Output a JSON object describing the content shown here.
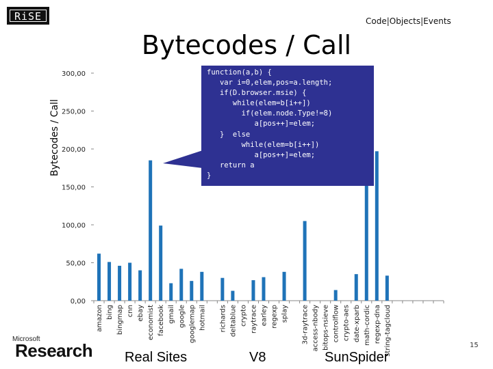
{
  "header": {
    "logo_text": "RiSE",
    "nav": [
      "Code",
      "Objects",
      "Events"
    ],
    "nav_separator": "|"
  },
  "slide_title": "Bytecodes / Call",
  "chart_data": {
    "type": "bar",
    "ylabel": "Bytecodes / Call",
    "ylim": [
      0,
      300
    ],
    "yticks": [
      0,
      50,
      100,
      150,
      200,
      250,
      300
    ],
    "ytick_labels": [
      "0,00",
      "50,00",
      "100,00",
      "150,00",
      "200,00",
      "250,00",
      "300,00"
    ],
    "bar_color": "#1f73b8",
    "categories": [
      "amazon",
      "bing",
      "bingmap",
      "cnn",
      "ebay",
      "economist",
      "facebook",
      "gmail",
      "google",
      "googlemap",
      "hotmail",
      "",
      "richards",
      "deltablue",
      "crypto",
      "raytrace",
      "earley",
      "regexp",
      "splay",
      "",
      "3d-raytrace",
      "access-nbody",
      "bitops-nsieve",
      "controlflow",
      "crypto-aes",
      "date-xparb",
      "math-cordic",
      "regexp-dna",
      "string-tagcloud",
      "",
      "",
      "",
      "",
      ""
    ],
    "values": [
      62,
      51,
      46,
      50,
      40,
      185,
      99,
      23,
      42,
      26,
      38,
      null,
      30,
      13,
      null,
      27,
      31,
      null,
      38,
      null,
      105,
      null,
      null,
      14,
      null,
      35,
      167,
      197,
      33,
      null,
      null,
      null,
      null,
      null
    ],
    "groups": [
      {
        "name": "Real Sites"
      },
      {
        "name": "V8"
      },
      {
        "name": "SunSpider"
      }
    ]
  },
  "code_popup": {
    "lines": [
      "function(a,b) {",
      "   var i=0,elem,pos=a.length;",
      "   if(D.browser.msie) {",
      "      while(elem=b[i++])",
      "        if(elem.node.Type!=8)",
      "           a[pos++]=elem;",
      "   }  else",
      "        while(elem=b[i++])",
      "           a[pos++]=elem;",
      "   return a",
      "}"
    ]
  },
  "footer": {
    "brand_small": "Microsoft",
    "brand_large": "Research",
    "page_number": "15"
  }
}
